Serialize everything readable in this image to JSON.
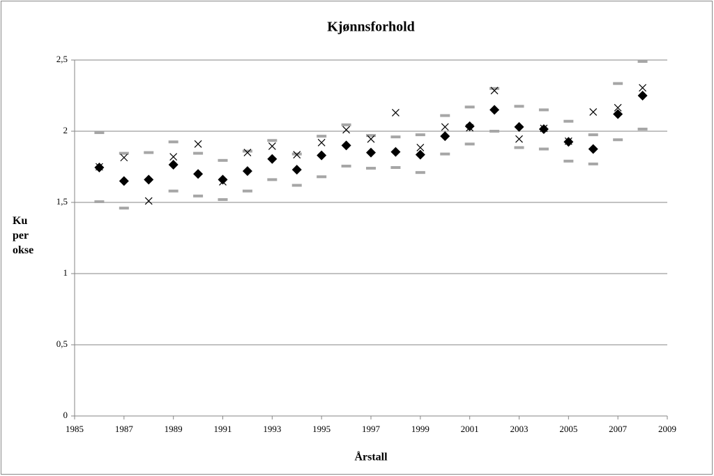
{
  "chart_data": {
    "type": "scatter",
    "title": "Kjønnsforhold",
    "xlabel": "Årstall",
    "ylabel": "Ku per okse",
    "x": [
      1986,
      1987,
      1988,
      1989,
      1990,
      1991,
      1992,
      1993,
      1994,
      1995,
      1996,
      1997,
      1998,
      1999,
      2000,
      2001,
      2002,
      2003,
      2004,
      2005,
      2006,
      2007,
      2008
    ],
    "series": [
      {
        "marker": "dash",
        "color": "#a6a6a6",
        "values": [
          1.99,
          1.845,
          1.85,
          1.925,
          1.845,
          1.795,
          1.86,
          1.935,
          1.84,
          1.965,
          2.045,
          1.97,
          1.96,
          1.975,
          2.11,
          2.17,
          2.3,
          2.175,
          2.15,
          2.07,
          1.975,
          2.335,
          2.49
        ]
      },
      {
        "marker": "dash",
        "color": "#a6a6a6",
        "values": [
          1.505,
          1.46,
          null,
          1.58,
          1.545,
          1.52,
          1.58,
          1.66,
          1.62,
          1.68,
          1.755,
          1.74,
          1.745,
          1.71,
          1.84,
          1.91,
          2.0,
          1.885,
          1.875,
          1.79,
          1.77,
          1.94,
          2.015
        ]
      },
      {
        "marker": "diamond",
        "color": "#000000",
        "values": [
          1.745,
          1.65,
          1.66,
          1.765,
          1.7,
          1.66,
          1.72,
          1.805,
          1.73,
          1.83,
          1.9,
          1.85,
          1.855,
          1.835,
          1.965,
          2.035,
          2.15,
          2.03,
          2.015,
          1.925,
          1.875,
          2.12,
          2.25
        ]
      },
      {
        "marker": "x",
        "color": "#000000",
        "values": [
          1.75,
          1.815,
          1.51,
          1.82,
          1.91,
          1.645,
          1.85,
          1.895,
          1.835,
          1.92,
          2.01,
          1.945,
          2.13,
          1.885,
          2.03,
          2.025,
          2.285,
          1.945,
          2.02,
          1.93,
          2.135,
          2.165,
          2.305
        ]
      }
    ],
    "xlim": [
      1985,
      2009
    ],
    "xticks": [
      1985,
      1987,
      1989,
      1991,
      1993,
      1995,
      1997,
      1999,
      2001,
      2003,
      2005,
      2007,
      2009
    ],
    "ylim": [
      0,
      2.5
    ],
    "yticks": [
      0,
      {
        "value": 0.5,
        "label": "0,5"
      },
      1,
      {
        "value": 1.5,
        "label": "1,5"
      },
      2,
      {
        "value": 2.5,
        "label": "2,5"
      }
    ],
    "grid": true
  }
}
